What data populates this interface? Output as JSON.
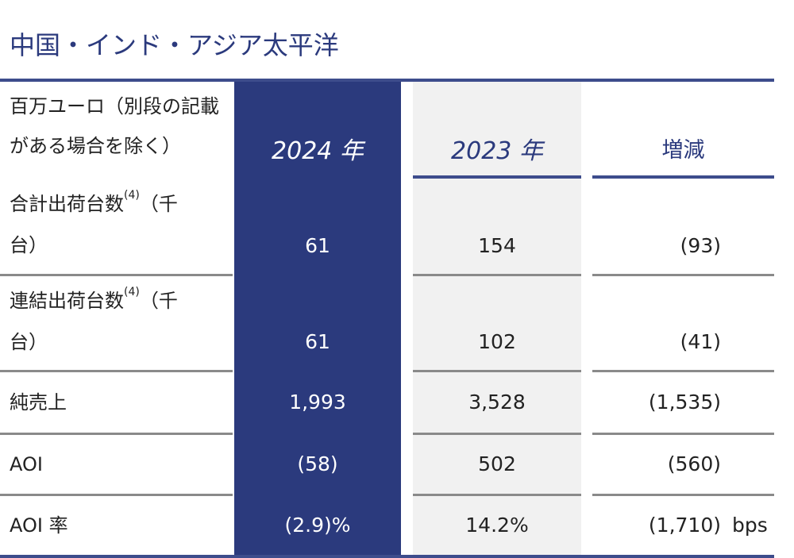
{
  "title": "中国・インド・アジア太平洋",
  "table": {
    "header": {
      "label": "百万ユーロ（別段の記載がある場合を除く）",
      "columns": [
        "2024 年",
        "2023 年",
        "増減"
      ]
    },
    "rows": [
      {
        "label": "合計出荷台数",
        "note": "(4)",
        "label_suffix": "（千台）",
        "values": [
          "61",
          "154",
          "(93)"
        ]
      },
      {
        "label": "連結出荷台数",
        "note": "(4)",
        "label_suffix": "（千台）",
        "values": [
          "61",
          "102",
          "(41)"
        ]
      },
      {
        "label": "純売上",
        "values": [
          "1,993",
          "3,528",
          "(1,535)"
        ]
      },
      {
        "label": "AOI",
        "values": [
          "(58)",
          "502",
          "(560)"
        ]
      },
      {
        "label": "AOI 率",
        "values": [
          "(2.9)%",
          "14.2%",
          "(1,710)"
        ],
        "unit": "bps"
      }
    ]
  }
}
